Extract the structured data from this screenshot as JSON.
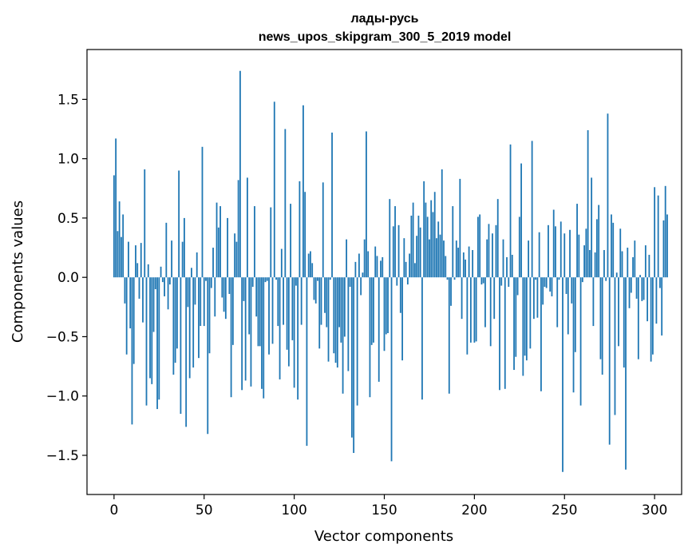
{
  "chart_data": {
    "type": "bar",
    "title_line1": "лады-русь",
    "title_line2": "news_upos_skipgram_300_5_2019 model",
    "xlabel": "Vector components",
    "ylabel": "Components values",
    "xlim": [
      -15,
      315
    ],
    "ylim": [
      -1.83,
      1.92
    ],
    "xticks": [
      0,
      50,
      100,
      150,
      200,
      250,
      300
    ],
    "xtick_labels": [
      "0",
      "50",
      "100",
      "150",
      "200",
      "250",
      "300"
    ],
    "yticks": [
      -1.5,
      -1.0,
      -0.5,
      0.0,
      0.5,
      1.0,
      1.5
    ],
    "ytick_labels": [
      "−1.5",
      "−1.0",
      "−0.5",
      "0.0",
      "0.5",
      "1.0",
      "1.5"
    ],
    "bar_color": "#1f77b4",
    "series": [
      {
        "name": "лады-русь",
        "x_start": 0,
        "values": [
          0.86,
          1.17,
          0.39,
          0.64,
          0.34,
          0.53,
          -0.22,
          -0.65,
          0.3,
          -0.43,
          -1.24,
          -0.73,
          0.27,
          0.12,
          -0.18,
          0.29,
          -0.38,
          0.91,
          -1.08,
          0.11,
          -0.85,
          -0.9,
          -0.46,
          -0.1,
          -1.11,
          -1.03,
          0.09,
          -0.04,
          -0.16,
          0.46,
          -0.27,
          -0.06,
          0.31,
          -0.82,
          -0.72,
          -0.6,
          0.9,
          -1.15,
          0.3,
          0.5,
          -1.26,
          -0.25,
          -0.85,
          0.08,
          -0.76,
          -0.23,
          0.21,
          -0.68,
          -0.41,
          1.1,
          -0.41,
          -0.03,
          -1.32,
          -0.64,
          -0.09,
          0.25,
          -0.33,
          0.63,
          0.42,
          0.6,
          -0.17,
          -0.29,
          -0.35,
          0.5,
          -0.14,
          -1.01,
          -0.57,
          0.37,
          0.3,
          0.82,
          1.74,
          -0.95,
          -0.2,
          -0.87,
          0.84,
          -0.48,
          -0.92,
          -0.08,
          0.6,
          -0.33,
          -0.58,
          -0.58,
          -0.94,
          -1.02,
          -0.04,
          -0.03,
          -0.65,
          0.59,
          -0.56,
          1.48,
          -0.02,
          -0.41,
          -0.86,
          0.24,
          -0.4,
          1.25,
          -0.61,
          -0.75,
          0.62,
          -0.53,
          -0.93,
          -0.07,
          -1.03,
          0.81,
          -0.4,
          1.45,
          0.72,
          -1.42,
          0.2,
          0.22,
          0.12,
          -0.19,
          -0.22,
          -0.03,
          -0.6,
          -0.4,
          0.8,
          -0.3,
          -0.42,
          -0.71,
          -0.02,
          1.22,
          -0.64,
          -0.72,
          -0.76,
          -0.42,
          -0.55,
          -0.98,
          -0.5,
          0.32,
          -0.79,
          -0.08,
          -1.35,
          -1.48,
          0.13,
          -1.08,
          0.2,
          -0.15,
          0.04,
          0.32,
          1.23,
          0.22,
          -1.01,
          -0.57,
          -0.55,
          0.26,
          0.18,
          -0.88,
          0.14,
          0.17,
          -0.62,
          -0.48,
          -0.47,
          0.66,
          -1.55,
          0.43,
          0.6,
          -0.07,
          0.44,
          -0.3,
          -0.7,
          0.33,
          0.13,
          -0.06,
          0.2,
          0.52,
          0.63,
          0.12,
          0.35,
          0.52,
          0.42,
          -1.03,
          0.81,
          0.63,
          0.51,
          0.32,
          0.65,
          0.55,
          0.72,
          0.33,
          0.47,
          0.36,
          0.91,
          0.31,
          0.18,
          -0.02,
          -0.98,
          -0.24,
          0.6,
          -0.02,
          0.31,
          0.25,
          0.83,
          -0.35,
          0.21,
          0.15,
          -0.65,
          0.26,
          -0.55,
          0.23,
          -0.55,
          -0.54,
          0.51,
          0.53,
          -0.06,
          -0.05,
          -0.42,
          0.32,
          0.45,
          -0.58,
          0.37,
          -0.35,
          0.44,
          0.66,
          -0.95,
          -0.07,
          0.32,
          -0.94,
          0.17,
          -0.08,
          1.12,
          0.19,
          -0.78,
          -0.67,
          -0.15,
          0.51,
          0.96,
          -0.83,
          -0.66,
          -0.7,
          0.31,
          -0.6,
          1.15,
          -0.35,
          -0.02,
          -0.34,
          0.38,
          -0.96,
          -0.23,
          -0.08,
          -0.09,
          0.44,
          -0.12,
          -0.16,
          0.57,
          0.43,
          -0.42,
          -0.02,
          0.47,
          -1.64,
          0.37,
          -0.14,
          -0.48,
          0.4,
          -0.22,
          -0.97,
          -0.63,
          0.62,
          0.36,
          -1.08,
          -0.04,
          0.27,
          0.41,
          1.24,
          0.23,
          0.84,
          -0.41,
          0.21,
          0.49,
          0.61,
          -0.69,
          -0.82,
          0.23,
          -0.03,
          1.38,
          -1.41,
          0.53,
          0.46,
          -1.16,
          0.04,
          -0.58,
          0.41,
          0.22,
          -0.76,
          -1.62,
          0.25,
          -0.26,
          -0.13,
          0.17,
          0.31,
          -0.18,
          -0.69,
          0.02,
          -0.2,
          -0.19,
          0.27,
          -0.37,
          0.19,
          -0.71,
          -0.65,
          0.76,
          -0.39,
          0.69,
          -0.09,
          -0.49,
          0.48,
          0.77,
          0.53
        ]
      }
    ]
  }
}
